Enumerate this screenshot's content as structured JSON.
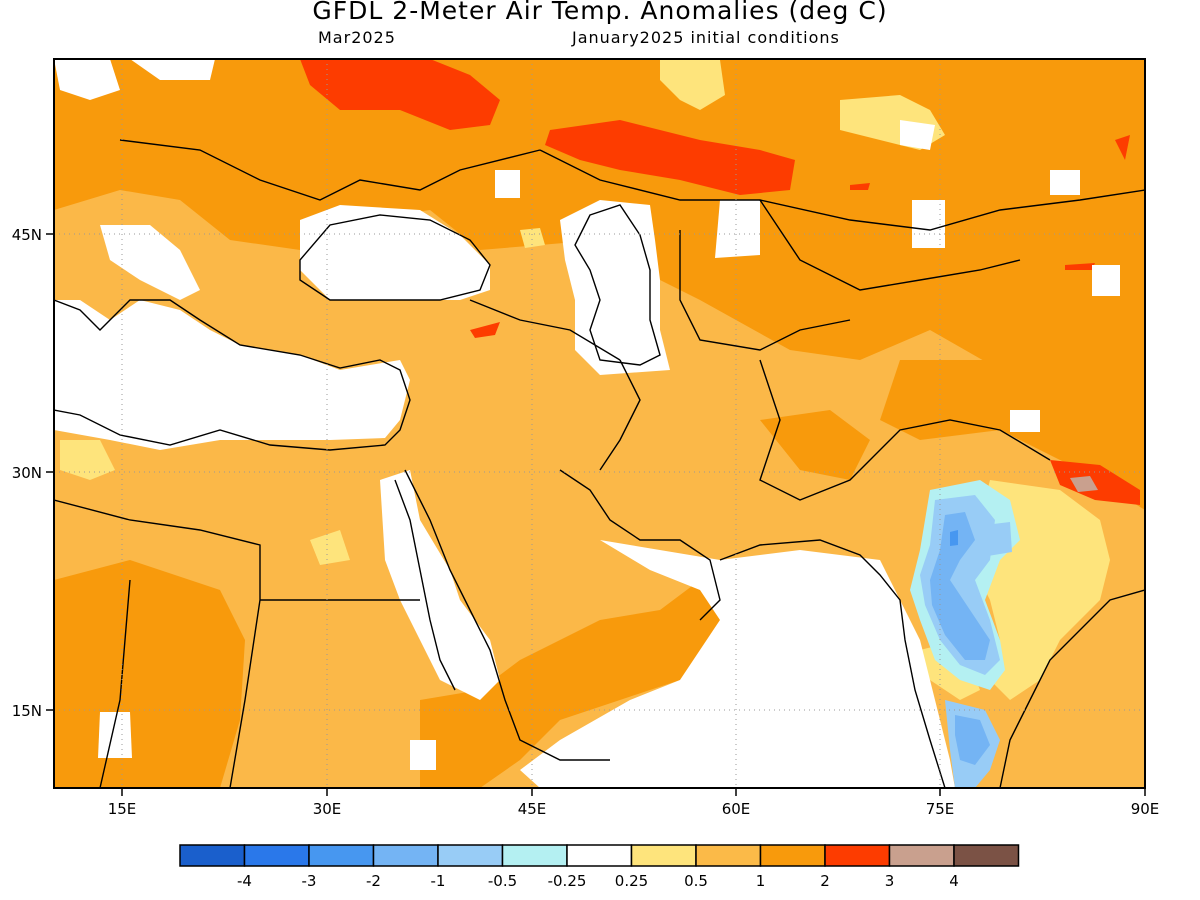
{
  "header": {
    "title": "GFDL 2-Meter Air Temp. Anomalies (deg C)",
    "valid_month": "Mar2025",
    "init_label": "January2025 initial conditions"
  },
  "map": {
    "lon_range": [
      10,
      90
    ],
    "lat_range": [
      10,
      55
    ],
    "lon_ticks": [
      {
        "value": 15,
        "label": "15E"
      },
      {
        "value": 30,
        "label": "30E"
      },
      {
        "value": 45,
        "label": "45E"
      },
      {
        "value": 60,
        "label": "60E"
      },
      {
        "value": 75,
        "label": "75E"
      },
      {
        "value": 90,
        "label": "90E"
      }
    ],
    "lat_ticks": [
      {
        "value": 45,
        "label": "45N"
      },
      {
        "value": 30,
        "label": "30N"
      },
      {
        "value": 15,
        "label": "15N"
      }
    ],
    "gridlines": "dotted",
    "colors": {
      "ocean_neutral": "#ffffff",
      "warm_0_5": "#fbb848",
      "warm_1": "#f89a0c",
      "warm_2": "#fd3c00",
      "cool_m1": "#6fb4f6"
    }
  },
  "colorbar": {
    "colors": [
      "#1a5fcc",
      "#2a78ea",
      "#4797f0",
      "#74b4f4",
      "#98ccf6",
      "#b4f0f2",
      "#ffffff",
      "#fee47c",
      "#fbba48",
      "#f89a0c",
      "#fd3c00",
      "#c9a08e",
      "#7b5245"
    ],
    "labels": [
      "-4",
      "-3",
      "-2",
      "-1",
      "-0.5",
      "-0.25",
      "0.25",
      "0.5",
      "1",
      "2",
      "3",
      "4"
    ]
  }
}
